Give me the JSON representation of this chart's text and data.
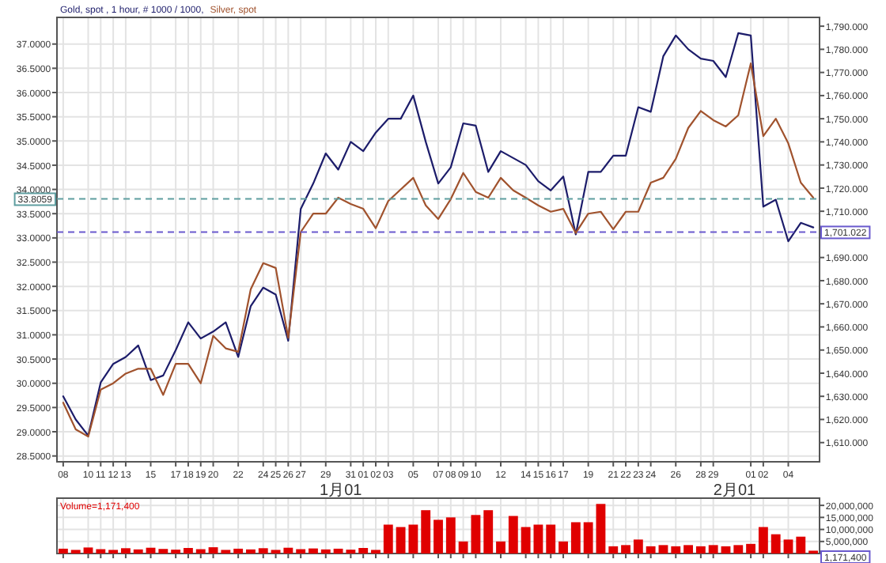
{
  "chart_data": [
    {
      "type": "line",
      "grid": true,
      "legend": "top left",
      "line_style": "solid",
      "categories": [
        "08",
        null,
        "10",
        "11",
        "12",
        "13",
        null,
        "15",
        null,
        "17",
        "18",
        "19",
        "20",
        null,
        "22",
        null,
        "24",
        "25",
        "26",
        "27",
        null,
        "29",
        null,
        "31",
        "01",
        "02",
        "03",
        null,
        "05",
        null,
        "07",
        "08",
        "09",
        "10",
        null,
        "12",
        null,
        "14",
        "15",
        "16",
        "17",
        null,
        "19",
        null,
        "21",
        "22",
        "23",
        "24",
        null,
        "26",
        null,
        "28",
        "29",
        null,
        null,
        "01",
        "02",
        null,
        "04",
        null,
        null
      ],
      "ylim": [
        28.38,
        37.55
      ],
      "yticks": [
        {
          "value": 28.5,
          "label": "28.5000"
        },
        {
          "value": 29,
          "label": "29.0000"
        },
        {
          "value": 29.5,
          "label": "29.5000"
        },
        {
          "value": 30,
          "label": "30.0000"
        },
        {
          "value": 30.5,
          "label": "30.5000"
        },
        {
          "value": 31,
          "label": "31.0000"
        },
        {
          "value": 31.5,
          "label": "31.5000"
        },
        {
          "value": 32,
          "label": "32.0000"
        },
        {
          "value": 32.5,
          "label": "32.5000"
        },
        {
          "value": 33,
          "label": "33.0000"
        },
        {
          "value": 33.5,
          "label": "33.5000"
        },
        {
          "value": 34,
          "label": "34.0000"
        },
        {
          "value": 34.5,
          "label": "34.5000"
        },
        {
          "value": 35,
          "label": "35.0000"
        },
        {
          "value": 35.5,
          "label": "35.5000"
        },
        {
          "value": 36,
          "label": "36.0000"
        },
        {
          "value": 36.5,
          "label": "36.5000"
        },
        {
          "value": 37,
          "label": "37.0000"
        }
      ],
      "y2lim": [
        1601.7,
        1793.8
      ],
      "y2ticks": [
        {
          "value": 1610,
          "label": "1,610.000"
        },
        {
          "value": 1620,
          "label": "1,620.000"
        },
        {
          "value": 1630,
          "label": "1,630.000"
        },
        {
          "value": 1640,
          "label": "1,640.000"
        },
        {
          "value": 1650,
          "label": "1,650.000"
        },
        {
          "value": 1660,
          "label": "1,660.000"
        },
        {
          "value": 1670,
          "label": "1,670.000"
        },
        {
          "value": 1680,
          "label": "1,680.000"
        },
        {
          "value": 1690,
          "label": "1,690.000"
        },
        {
          "value": 1700,
          "label": null
        },
        {
          "value": 1710,
          "label": "1,710.000"
        },
        {
          "value": 1720,
          "label": "1,720.000"
        },
        {
          "value": 1730,
          "label": "1,730.000"
        },
        {
          "value": 1740,
          "label": "1,740.000"
        },
        {
          "value": 1750,
          "label": "1,750.000"
        },
        {
          "value": 1760,
          "label": "1,760.000"
        },
        {
          "value": 1770,
          "label": "1,770.000"
        },
        {
          "value": 1780,
          "label": "1,780.000"
        },
        {
          "value": 1790,
          "label": "1,790.000"
        }
      ],
      "series": [
        {
          "name": "Gold, spot , 1 hour, # 1000 / 1000,",
          "color": "#1c1c6a",
          "axis": "y2",
          "values": [
            1630,
            1620,
            1613,
            1636,
            1644,
            1647,
            1652,
            1637,
            1639,
            1650,
            1662,
            1655,
            1658,
            1662,
            1647,
            1669,
            1677,
            1674,
            1654,
            1711,
            1722,
            1735,
            1728,
            1740,
            1736,
            1744,
            1750,
            1750,
            1760,
            1740,
            1722,
            1729,
            1748,
            1747,
            1727,
            1736,
            1733,
            1730,
            1723,
            1719,
            1725,
            1700,
            1727,
            1727,
            1734,
            1734,
            1755,
            1753,
            1777,
            1786,
            1780,
            1776,
            1775,
            1768,
            1787,
            1786,
            1712,
            1715,
            1697,
            1705,
            1703
          ]
        },
        {
          "name": "Silver, spot",
          "color": "#a0522d",
          "axis": "y",
          "values": [
            29.6,
            29.05,
            28.9,
            29.87,
            30.0,
            30.2,
            30.3,
            30.3,
            29.76,
            30.4,
            30.4,
            30.0,
            30.98,
            30.72,
            30.65,
            31.94,
            32.48,
            32.38,
            30.94,
            33.12,
            33.5,
            33.5,
            33.83,
            33.7,
            33.6,
            33.2,
            33.76,
            34.0,
            34.24,
            33.67,
            33.39,
            33.8,
            34.34,
            33.95,
            33.83,
            34.24,
            33.98,
            33.83,
            33.67,
            33.54,
            33.6,
            33.1,
            33.5,
            33.54,
            33.18,
            33.54,
            33.54,
            34.14,
            34.24,
            34.63,
            35.27,
            35.62,
            35.43,
            35.3,
            35.53,
            36.6,
            35.1,
            35.46,
            34.95,
            34.14,
            33.83
          ]
        }
      ],
      "ref_lines": [
        {
          "axis": "y",
          "value": 33.8059,
          "label": "33.8059",
          "color": "#5f9ea0",
          "line_style": "dashed"
        },
        {
          "axis": "y2",
          "value": 1701.022,
          "label": "1,701.022",
          "color": "#6a5acd",
          "line_style": "dashed"
        }
      ],
      "annotations": [
        "1月01",
        "2月01"
      ]
    },
    {
      "type": "bar",
      "grid": true,
      "legend": "top left",
      "tick_labels": "y",
      "categories": [
        "08",
        null,
        "10",
        "11",
        "12",
        "13",
        null,
        "15",
        null,
        "17",
        "18",
        "19",
        "20",
        null,
        "22",
        null,
        "24",
        "25",
        "26",
        "27",
        null,
        "29",
        null,
        "31",
        "01",
        "02",
        "03",
        null,
        "05",
        null,
        "07",
        "08",
        "09",
        "10",
        null,
        "12",
        null,
        "14",
        "15",
        "16",
        "17",
        null,
        "19",
        null,
        "21",
        "22",
        "23",
        "24",
        null,
        "26",
        null,
        "28",
        "29",
        null,
        null,
        "01",
        "02",
        null,
        "04",
        null,
        null
      ],
      "ylim": [
        0,
        23000000
      ],
      "yticks": [
        {
          "value": 5000000,
          "label": "5,000,000"
        },
        {
          "value": 10000000,
          "label": "10,000,000"
        },
        {
          "value": 15000000,
          "label": "15,000,000"
        },
        {
          "value": 20000000,
          "label": "20,000,000"
        }
      ],
      "series": [
        {
          "name": "Volume=1,171,400",
          "color": "#e00000",
          "values": [
            2000000,
            1500000,
            2500000,
            1800000,
            1500000,
            2200000,
            1700000,
            2400000,
            1900000,
            1600000,
            2300000,
            1800000,
            2600000,
            1500000,
            2000000,
            1700000,
            2200000,
            1500000,
            2400000,
            1800000,
            2100000,
            1700000,
            2000000,
            1600000,
            2300000,
            1500000,
            12000000,
            11000000,
            12000000,
            18000000,
            14000000,
            15000000,
            5000000,
            16000000,
            18000000,
            5000000,
            15600000,
            11000000,
            12000000,
            12000000,
            5000000,
            13000000,
            13000000,
            20600000,
            3000000,
            3500000,
            5800000,
            3000000,
            3500000,
            3000000,
            3500000,
            3000000,
            3500000,
            3000000,
            3500000,
            4000000,
            11000000,
            8000000,
            5800000,
            7000000,
            1171400
          ]
        }
      ],
      "annotations": [
        "1,171,400"
      ]
    }
  ]
}
